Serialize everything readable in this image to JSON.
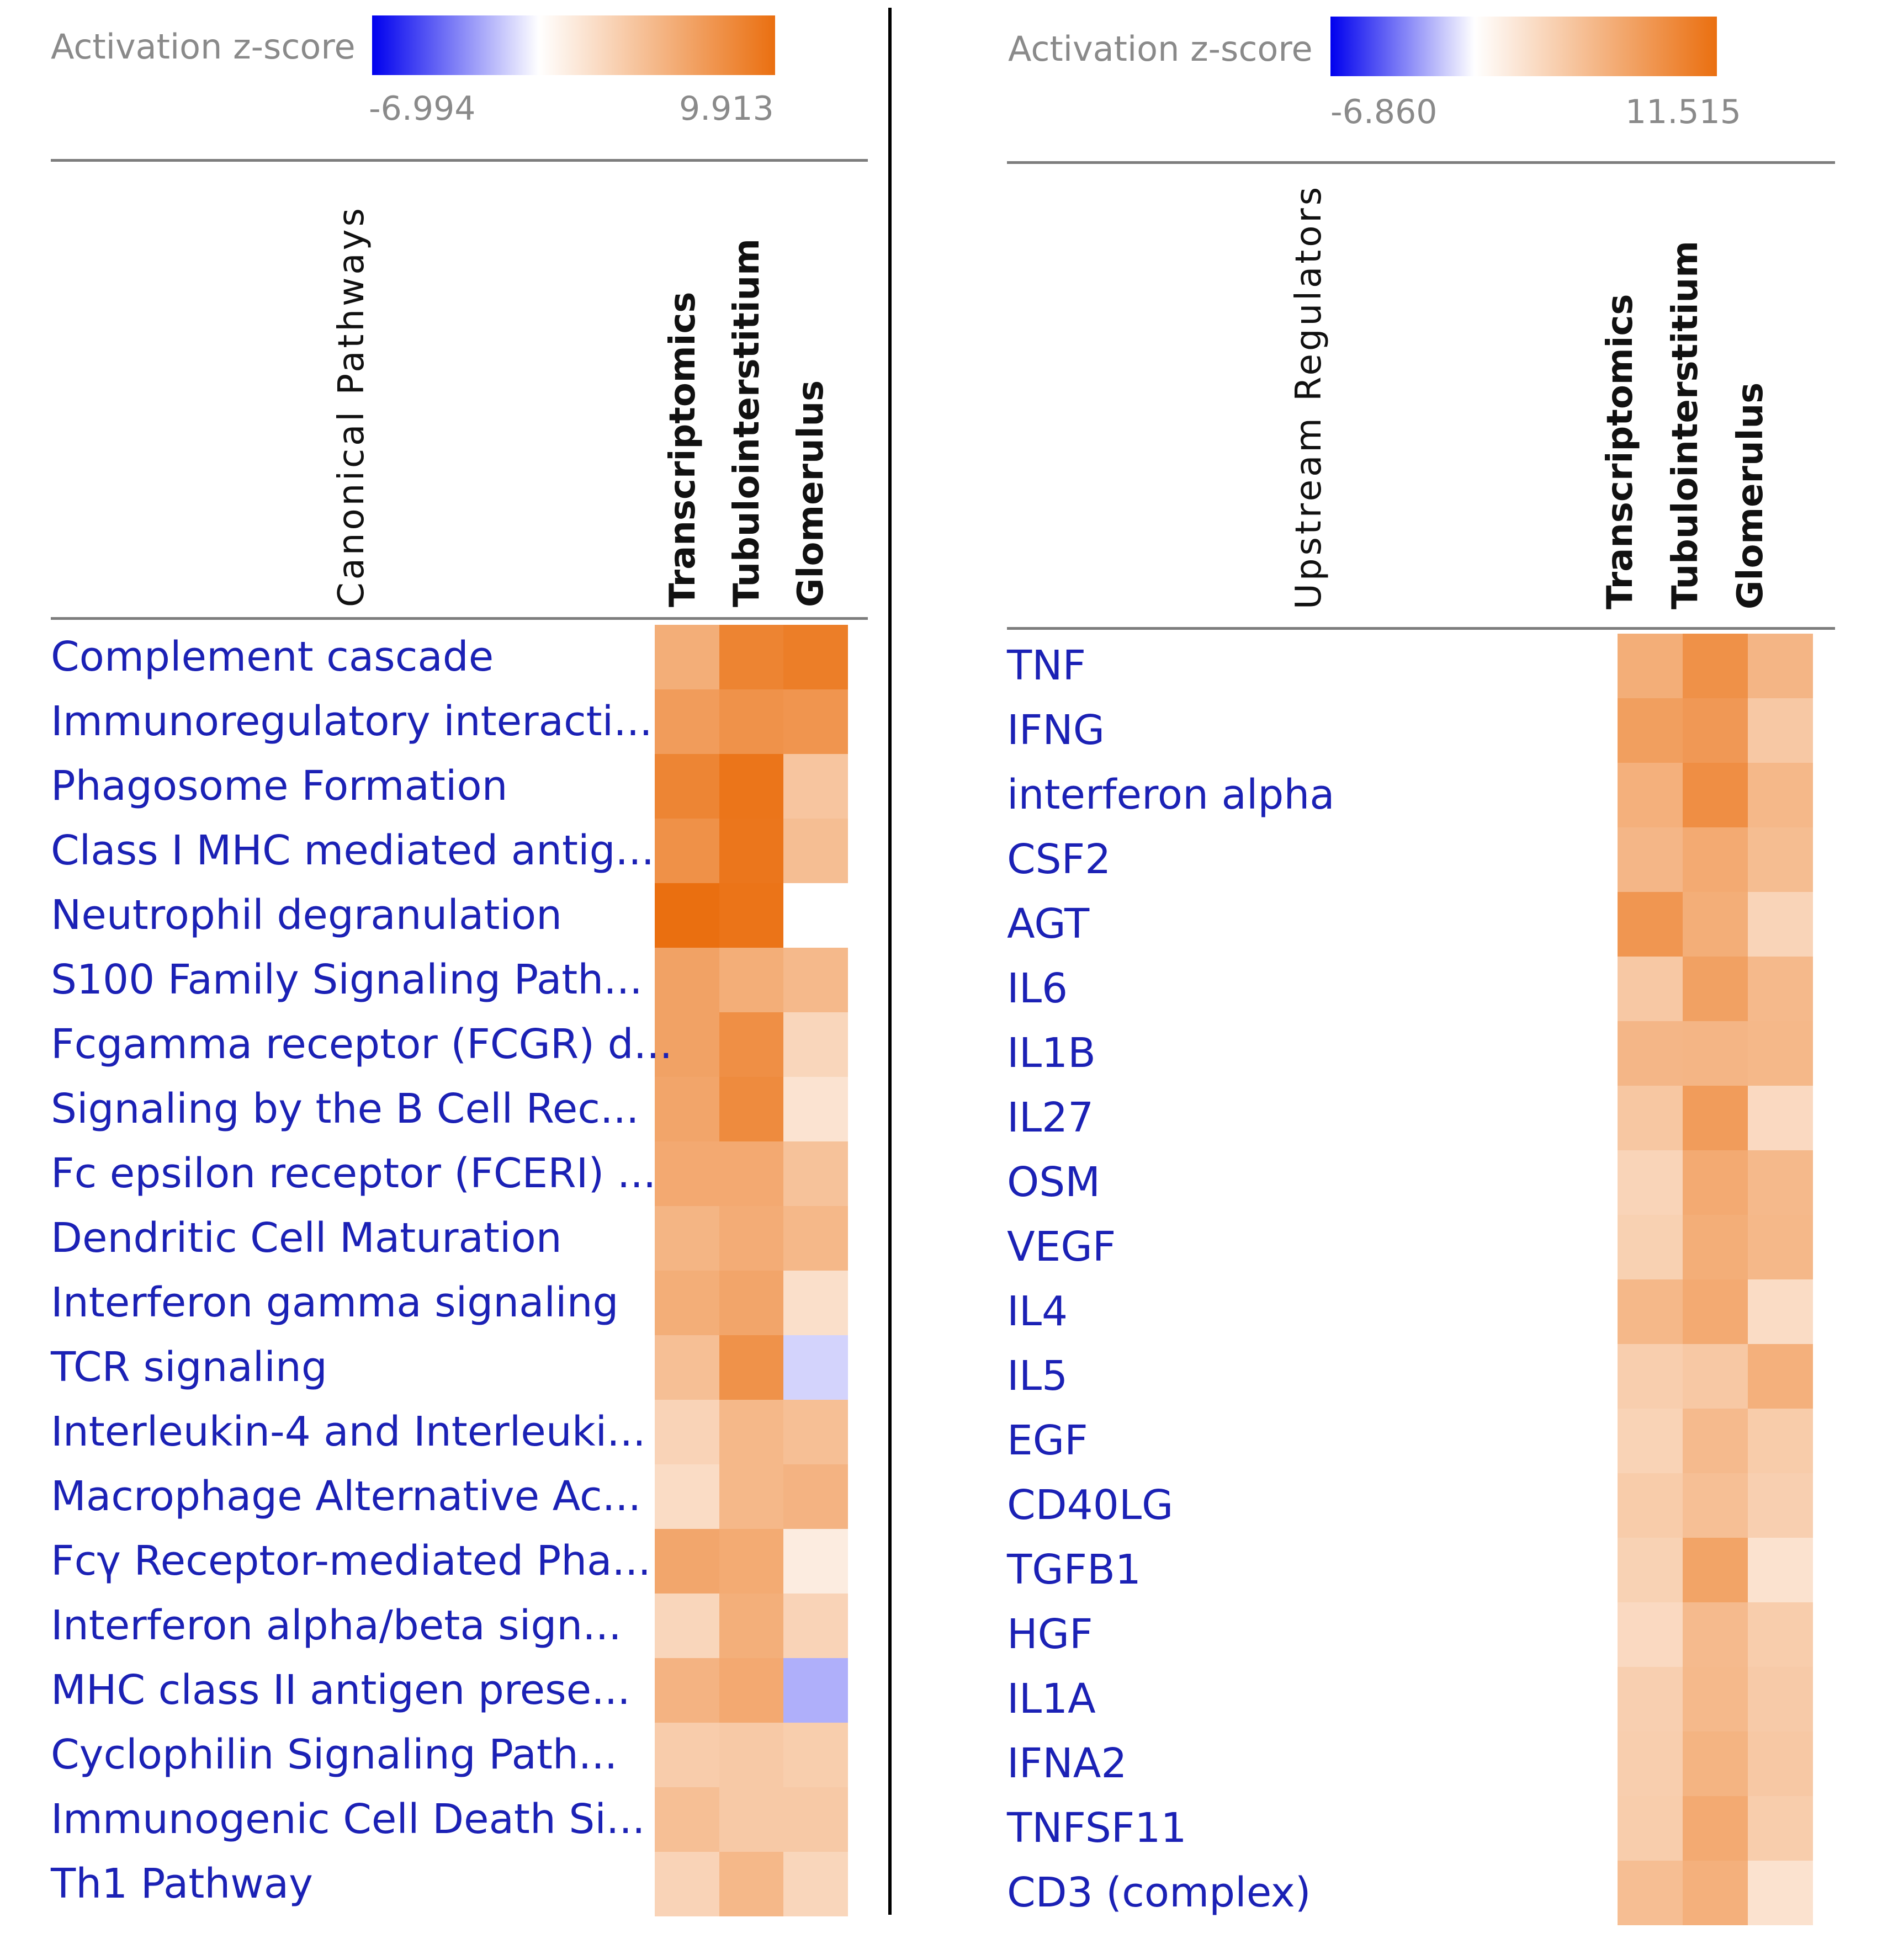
{
  "colors": {
    "low": "#0000ee",
    "mid": "#ffffff",
    "high": "#ea6f10",
    "label": "#1b21b5"
  },
  "panels": [
    {
      "legend": {
        "title": "Activation z-score",
        "min_label": "-6.994",
        "max_label": "9.913"
      },
      "section_title": "Canonical Pathways",
      "columns": [
        "Transcriptomics",
        "Tubulointerstitium",
        "Glomerulus"
      ],
      "rows": [
        "Complement cascade",
        "Immunoregulatory interacti...",
        "Phagosome Formation",
        "Class I MHC mediated antig...",
        "Neutrophil degranulation",
        "S100 Family Signaling Path...",
        "Fcgamma receptor (FCGR) d...",
        "Signaling by the B Cell Rec...",
        "Fc epsilon receptor (FCERI) ...",
        "Dendritic Cell Maturation",
        "Interferon gamma signaling",
        "TCR signaling",
        "Interleukin-4 and Interleuki...",
        "Macrophage Alternative Ac...",
        "Fcγ Receptor-mediated Pha...",
        "Interferon alpha/beta sign...",
        "MHC class II antigen prese...",
        "Cyclophilin Signaling Path...",
        "Immunogenic Cell Death Si...",
        "Th1 Pathway"
      ]
    },
    {
      "legend": {
        "title": "Activation z-score",
        "min_label": "-6.860",
        "max_label": "11.515"
      },
      "section_title": "Upstream Regulators",
      "columns": [
        "Transcriptomics",
        "Tubulointerstitium",
        "Glomerulus"
      ],
      "rows": [
        "TNF",
        "IFNG",
        "interferon alpha",
        "CSF2",
        "AGT",
        "IL6",
        "IL1B",
        "IL27",
        "OSM",
        "VEGF",
        "IL4",
        "IL5",
        "EGF",
        "CD40LG",
        "TGFB1",
        "HGF",
        "IL1A",
        "IFNA2",
        "TNFSF11",
        "CD3 (complex)"
      ]
    }
  ],
  "chart_data": [
    {
      "type": "heatmap",
      "title": "Canonical Pathways",
      "colorbar": {
        "label": "Activation z-score",
        "min": -6.994,
        "max": 9.913
      },
      "x": [
        "Transcriptomics",
        "Tubulointerstitium",
        "Glomerulus"
      ],
      "y": [
        "Complement cascade",
        "Immunoregulatory interacti...",
        "Phagosome Formation",
        "Class I MHC mediated antig...",
        "Neutrophil degranulation",
        "S100 Family Signaling Path...",
        "Fcgamma receptor (FCGR) d...",
        "Signaling by the B Cell Rec...",
        "Fc epsilon receptor (FCERI) ...",
        "Dendritic Cell Maturation",
        "Interferon gamma signaling",
        "TCR signaling",
        "Interleukin-4 and Interleuki...",
        "Macrophage Alternative Ac...",
        "Fcγ Receptor-mediated Pha...",
        "Interferon alpha/beta sign...",
        "MHC class II antigen prese...",
        "Cyclophilin Signaling Path...",
        "Immunogenic Cell Death Si...",
        "Th1 Pathway"
      ],
      "values": [
        [
          5.6,
          8.5,
          8.9
        ],
        [
          6.8,
          7.5,
          7.3
        ],
        [
          8.4,
          9.5,
          4.0
        ],
        [
          7.6,
          9.4,
          4.5
        ],
        [
          9.9,
          9.6,
          null
        ],
        [
          6.4,
          5.6,
          4.8
        ],
        [
          6.4,
          7.7,
          2.8
        ],
        [
          6.2,
          8.0,
          1.9
        ],
        [
          5.9,
          5.9,
          4.2
        ],
        [
          5.1,
          5.7,
          4.9
        ],
        [
          5.6,
          6.2,
          2.2
        ],
        [
          4.4,
          7.5,
          -1.2
        ],
        [
          3.0,
          4.9,
          4.4
        ],
        [
          2.4,
          4.9,
          5.2
        ],
        [
          6.1,
          5.8,
          1.3
        ],
        [
          2.8,
          5.5,
          3.0
        ],
        [
          5.2,
          5.9,
          -2.2
        ],
        [
          3.5,
          3.7,
          3.4
        ],
        [
          4.4,
          3.7,
          3.7
        ],
        [
          3.0,
          4.9,
          2.8
        ]
      ]
    },
    {
      "type": "heatmap",
      "title": "Upstream Regulators",
      "colorbar": {
        "label": "Activation z-score",
        "min": -6.86,
        "max": 11.515
      },
      "x": [
        "Transcriptomics",
        "Tubulointerstitium",
        "Glomerulus"
      ],
      "y": [
        "TNF",
        "IFNG",
        "interferon alpha",
        "CSF2",
        "AGT",
        "IL6",
        "IL1B",
        "IL27",
        "OSM",
        "VEGF",
        "IL4",
        "IL5",
        "EGF",
        "CD40LG",
        "TGFB1",
        "HGF",
        "IL1A",
        "IFNA2",
        "TNFSF11",
        "CD3 (complex)"
      ],
      "values": [
        [
          6.5,
          8.8,
          5.9
        ],
        [
          7.7,
          8.2,
          4.4
        ],
        [
          6.3,
          9.0,
          5.7
        ],
        [
          5.8,
          6.8,
          5.3
        ],
        [
          8.4,
          6.5,
          3.4
        ],
        [
          4.4,
          7.5,
          5.6
        ],
        [
          5.8,
          5.9,
          5.7
        ],
        [
          4.5,
          7.9,
          3.0
        ],
        [
          3.4,
          6.8,
          5.6
        ],
        [
          3.7,
          6.5,
          5.7
        ],
        [
          5.7,
          6.8,
          2.8
        ],
        [
          3.9,
          4.4,
          6.3
        ],
        [
          3.5,
          5.5,
          4.1
        ],
        [
          4.1,
          5.1,
          3.8
        ],
        [
          3.6,
          7.3,
          2.3
        ],
        [
          3.0,
          5.5,
          4.0
        ],
        [
          3.8,
          5.6,
          4.2
        ],
        [
          3.9,
          6.0,
          4.4
        ],
        [
          4.0,
          6.8,
          4.0
        ],
        [
          5.2,
          6.3,
          2.3
        ]
      ]
    }
  ]
}
